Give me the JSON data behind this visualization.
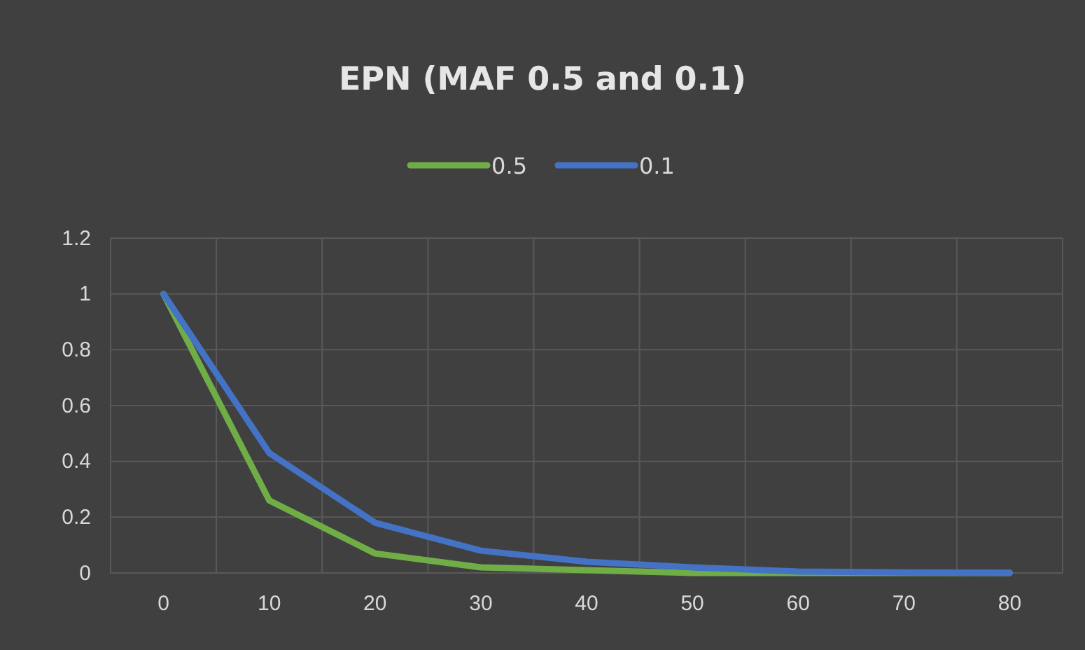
{
  "chart_data": {
    "type": "line",
    "title": "EPN (MAF 0.5 and 0.1)",
    "categories": [
      "0",
      "10",
      "20",
      "30",
      "40",
      "50",
      "60",
      "70",
      "80"
    ],
    "series": [
      {
        "name": "0.5",
        "color": "#70ad47",
        "values": [
          1,
          0.26,
          0.07,
          0.02,
          0.01,
          0,
          0,
          0,
          0
        ]
      },
      {
        "name": "0.1",
        "color": "#4472c4",
        "values": [
          1,
          0.43,
          0.18,
          0.08,
          0.04,
          0.02,
          0.005,
          0.002,
          0
        ]
      }
    ],
    "ylim": [
      0,
      1.2
    ],
    "yticks": [
      0,
      0.2,
      0.4,
      0.6,
      0.8,
      1,
      1.2
    ],
    "grid": true,
    "legend": "top",
    "marker": "none",
    "line_style": "solid"
  }
}
